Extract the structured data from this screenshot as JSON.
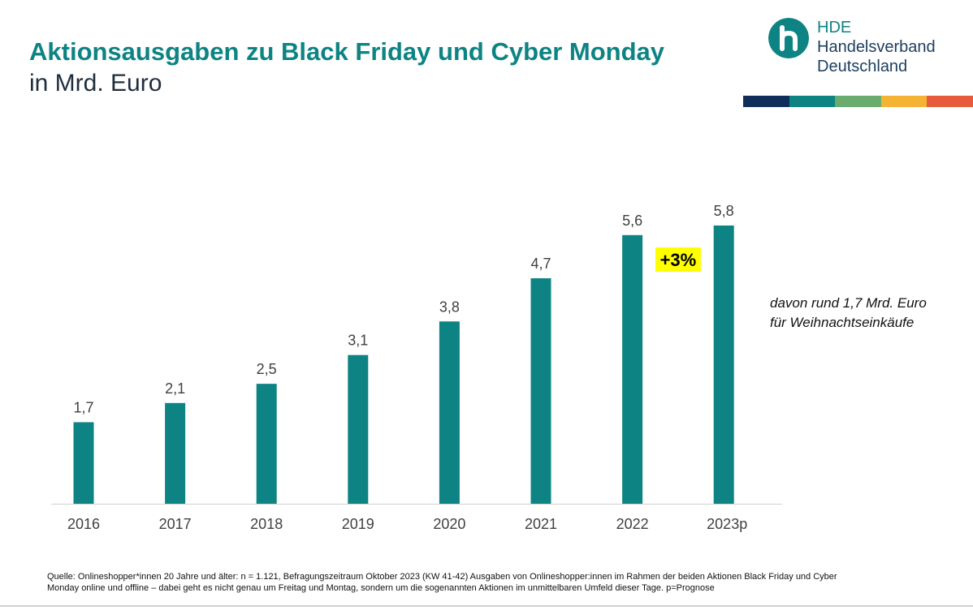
{
  "header": {
    "title": "Aktionsausgaben zu Black Friday und Cyber Monday",
    "subtitle": "in Mrd. Euro"
  },
  "logo": {
    "abbr": "HDE",
    "line1": "Handelsverband",
    "line2": "Deutschland",
    "icon": "hde-logo-icon"
  },
  "brand_colors": {
    "teal": "#0d8383",
    "navy": "#0f2f5a",
    "stripes": [
      "#0f2f5a",
      "#0d8383",
      "#6aab6e",
      "#f5b335",
      "#e85a3c"
    ]
  },
  "chart_data": {
    "type": "bar",
    "title": "Aktionsausgaben zu Black Friday und Cyber Monday",
    "ylabel": "in Mrd. Euro",
    "xlabel": "",
    "categories": [
      "2016",
      "2017",
      "2018",
      "2019",
      "2020",
      "2021",
      "2022",
      "2023p"
    ],
    "values": [
      1.7,
      2.1,
      2.5,
      3.1,
      3.8,
      4.7,
      5.6,
      5.8
    ],
    "value_labels": [
      "1,7",
      "2,1",
      "2,5",
      "3,1",
      "3,8",
      "4,7",
      "5,6",
      "5,8"
    ],
    "ylim": [
      0,
      5.8
    ],
    "grid": false,
    "bar_color": "#0d8383",
    "annotations": [
      {
        "text": "+3%",
        "between": [
          "2022",
          "2023p"
        ],
        "highlight": "#ffff00"
      }
    ]
  },
  "note": {
    "line1": "davon rund 1,7 Mrd. Euro",
    "line2": "für Weihnachtseinkäufe"
  },
  "source": "Quelle: Onlineshopper*innen 20 Jahre und älter: n = 1.121, Befragungszeitraum Oktober 2023 (KW 41-42) Ausgaben von Onlineshopper:innen im Rahmen der beiden Aktionen Black Friday und Cyber Monday online und offline – dabei geht es nicht genau um Freitag und Montag, sondern um die sogenannten Aktionen im unmittelbaren Umfeld dieser Tage. p=Prognose"
}
